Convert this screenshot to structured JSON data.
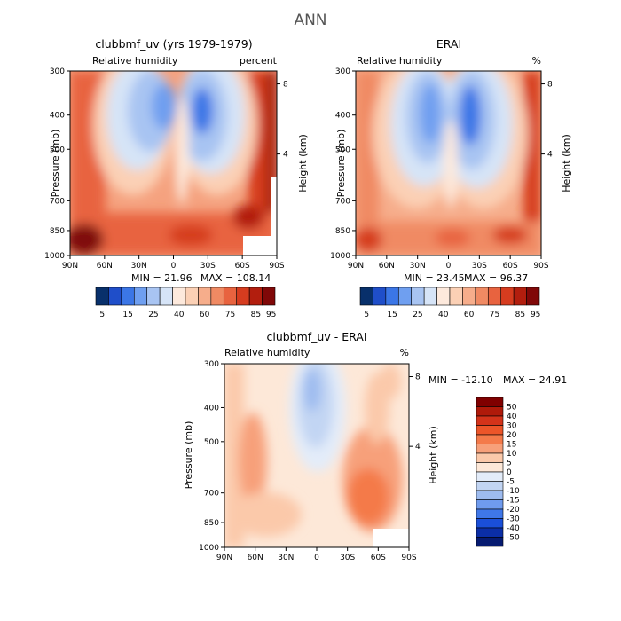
{
  "figure": {
    "title": "ANN"
  },
  "panels": [
    {
      "id": "model",
      "title": "clubbmf_uv (yrs 1979-1979)",
      "subtitle_left": "Relative humidity",
      "subtitle_right": "percent",
      "min_label": "MIN = 21.96",
      "max_label": "MAX = 108.14"
    },
    {
      "id": "obs",
      "title": "ERAI",
      "subtitle_left": "Relative humidity",
      "subtitle_right": "%",
      "min_label": "MIN = 23.45",
      "max_label": "MAX = 96.37"
    },
    {
      "id": "diff",
      "title": "clubbmf_uv - ERAI",
      "subtitle_left": "Relative humidity",
      "subtitle_right": "%",
      "min_label": "MIN = -12.10",
      "max_label": "MAX = 24.91"
    }
  ],
  "axes": {
    "ylabel": "Pressure (mb)",
    "ylabel_right": "Height (km)",
    "pressure_ticks": [
      "300",
      "400",
      "500",
      "700",
      "850",
      "1000"
    ],
    "height_ticks": [
      "8",
      "4"
    ],
    "lat_ticks": [
      "90N",
      "60N",
      "30N",
      "0",
      "30S",
      "60S",
      "90S"
    ]
  },
  "colorbar_abs": {
    "labels": [
      "5",
      "15",
      "25",
      "40",
      "60",
      "75",
      "85",
      "95"
    ],
    "colors": [
      "#08306b",
      "#1f4ec9",
      "#3b76e6",
      "#6f9ff0",
      "#a8c4f2",
      "#d6e4f7",
      "#fde9dc",
      "#fbd0b5",
      "#f6ad8b",
      "#f08a63",
      "#e8633f",
      "#d63c1f",
      "#b21e0e",
      "#800808"
    ]
  },
  "colorbar_diff": {
    "labels": [
      "50",
      "40",
      "30",
      "20",
      "15",
      "10",
      "5",
      "0",
      "-5",
      "-10",
      "-15",
      "-20",
      "-30",
      "-40",
      "-50"
    ],
    "colors": [
      "#800000",
      "#b01a0a",
      "#d4331a",
      "#ec5529",
      "#f47a4a",
      "#f7a07a",
      "#fbc9aa",
      "#fde8d8",
      "#e3ecf9",
      "#c2d5f3",
      "#9ebcf0",
      "#6f9bee",
      "#3f77e8",
      "#1a4fd8",
      "#0b2ea6",
      "#061a70"
    ]
  },
  "chart_data": [
    {
      "type": "heatmap",
      "title": "clubbmf_uv (yrs 1979-1979)",
      "xlabel": "",
      "ylabel": "Pressure (mb)",
      "x_ticks": [
        "90N",
        "60N",
        "30N",
        "0",
        "30S",
        "60S",
        "90S"
      ],
      "y_ticks": [
        300,
        400,
        500,
        700,
        850,
        1000
      ],
      "min": 21.96,
      "max": 108.14,
      "levels": [
        5,
        15,
        25,
        40,
        60,
        75,
        85,
        95
      ]
    },
    {
      "type": "heatmap",
      "title": "ERAI",
      "xlabel": "",
      "ylabel": "Pressure (mb)",
      "x_ticks": [
        "90N",
        "60N",
        "30N",
        "0",
        "30S",
        "60S",
        "90S"
      ],
      "y_ticks": [
        300,
        400,
        500,
        700,
        850,
        1000
      ],
      "min": 23.45,
      "max": 96.37,
      "levels": [
        5,
        15,
        25,
        40,
        60,
        75,
        85,
        95
      ]
    },
    {
      "type": "heatmap",
      "title": "clubbmf_uv - ERAI",
      "xlabel": "",
      "ylabel": "Pressure (mb)",
      "x_ticks": [
        "90N",
        "60N",
        "30N",
        "0",
        "30S",
        "60S",
        "90S"
      ],
      "y_ticks": [
        300,
        400,
        500,
        700,
        850,
        1000
      ],
      "min": -12.1,
      "max": 24.91,
      "levels": [
        -50,
        -40,
        -30,
        -20,
        -15,
        -10,
        -5,
        0,
        5,
        10,
        15,
        20,
        30,
        40,
        50
      ]
    }
  ]
}
